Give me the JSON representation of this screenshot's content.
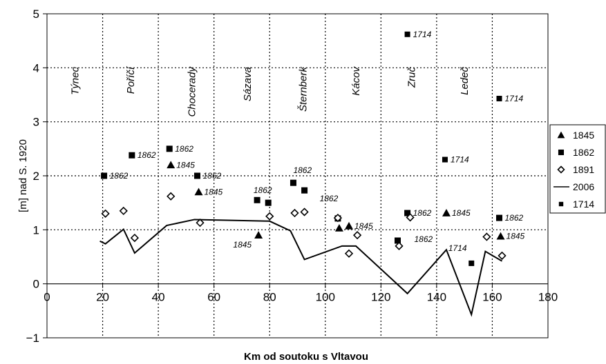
{
  "chart_data": {
    "type": "scatter",
    "xlabel": "Km od soutoku s Vltavou",
    "ylabel": "[m] nad S. 1920",
    "xlim": [
      0,
      180
    ],
    "ylim": [
      -1,
      5
    ],
    "x_ticks": [
      0,
      20,
      40,
      60,
      80,
      100,
      120,
      140,
      160,
      180
    ],
    "y_ticks": [
      -1,
      0,
      1,
      2,
      3,
      4,
      5
    ],
    "grid": "dotted",
    "legend_position": "right",
    "places": [
      {
        "name": "Týnec",
        "x": 10
      },
      {
        "name": "Poříčí",
        "x": 30
      },
      {
        "name": "Chocerady",
        "x": 52
      },
      {
        "name": "Sázava",
        "x": 72
      },
      {
        "name": "Šternberk",
        "x": 92
      },
      {
        "name": "Kácov",
        "x": 111
      },
      {
        "name": "Zruč",
        "x": 131
      },
      {
        "name": "Ledeč",
        "x": 150
      }
    ],
    "series": [
      {
        "name": "1845",
        "marker": "triangle",
        "points": [
          {
            "x": 44.5,
            "y": 2.2,
            "label": "1845"
          },
          {
            "x": 54.5,
            "y": 1.7,
            "label": "1845"
          },
          {
            "x": 76,
            "y": 0.9,
            "label": "1845"
          },
          {
            "x": 105,
            "y": 1.03,
            "label": ""
          },
          {
            "x": 108.5,
            "y": 1.07,
            "label": "1845"
          },
          {
            "x": 143.5,
            "y": 1.31,
            "label": "1845"
          },
          {
            "x": 163,
            "y": 0.88,
            "label": "1845"
          }
        ]
      },
      {
        "name": "1862",
        "marker": "square",
        "points": [
          {
            "x": 20.5,
            "y": 2.0,
            "label": "1862"
          },
          {
            "x": 30.5,
            "y": 2.38,
            "label": "1862"
          },
          {
            "x": 44,
            "y": 2.5,
            "label": "1862"
          },
          {
            "x": 54,
            "y": 2.0,
            "label": "1862"
          },
          {
            "x": 75.5,
            "y": 1.55,
            "label": ""
          },
          {
            "x": 79.5,
            "y": 1.5,
            "label": "1862"
          },
          {
            "x": 88.5,
            "y": 1.87,
            "label": "1862"
          },
          {
            "x": 92.5,
            "y": 1.73,
            "label": "1862"
          },
          {
            "x": 104.5,
            "y": 1.21,
            "label": ""
          },
          {
            "x": 126,
            "y": 0.8,
            "label": "1862"
          },
          {
            "x": 129.5,
            "y": 1.31,
            "label": "1862"
          },
          {
            "x": 162.5,
            "y": 1.22,
            "label": "1862"
          }
        ]
      },
      {
        "name": "1891",
        "marker": "diamond",
        "points": [
          {
            "x": 21,
            "y": 1.3
          },
          {
            "x": 27.5,
            "y": 1.35
          },
          {
            "x": 31.5,
            "y": 0.85
          },
          {
            "x": 44.5,
            "y": 1.62
          },
          {
            "x": 55,
            "y": 1.13
          },
          {
            "x": 80,
            "y": 1.25
          },
          {
            "x": 89,
            "y": 1.31
          },
          {
            "x": 92.5,
            "y": 1.33
          },
          {
            "x": 104.5,
            "y": 1.22
          },
          {
            "x": 108.5,
            "y": 0.56
          },
          {
            "x": 111.5,
            "y": 0.9
          },
          {
            "x": 126.5,
            "y": 0.7
          },
          {
            "x": 130.5,
            "y": 1.23
          },
          {
            "x": 158,
            "y": 0.87
          },
          {
            "x": 163.5,
            "y": 0.52
          }
        ]
      },
      {
        "name": "2006",
        "marker": "line",
        "points": [
          {
            "x": 19,
            "y": 0.79
          },
          {
            "x": 21,
            "y": 0.74
          },
          {
            "x": 27.5,
            "y": 1.01
          },
          {
            "x": 31.5,
            "y": 0.57
          },
          {
            "x": 43,
            "y": 1.08
          },
          {
            "x": 53,
            "y": 1.19
          },
          {
            "x": 80,
            "y": 1.16
          },
          {
            "x": 87.5,
            "y": 0.98
          },
          {
            "x": 92.5,
            "y": 0.45
          },
          {
            "x": 106,
            "y": 0.7
          },
          {
            "x": 111,
            "y": 0.7
          },
          {
            "x": 129.5,
            "y": -0.18
          },
          {
            "x": 143.5,
            "y": 0.63
          },
          {
            "x": 152.5,
            "y": -0.57
          },
          {
            "x": 157.5,
            "y": 0.6
          },
          {
            "x": 163.5,
            "y": 0.42
          }
        ]
      },
      {
        "name": "1714",
        "marker": "small-square",
        "points": [
          {
            "x": 129.5,
            "y": 4.62,
            "label": "1714"
          },
          {
            "x": 143,
            "y": 2.3,
            "label": "1714"
          },
          {
            "x": 152.5,
            "y": 0.38,
            "label": "1714"
          },
          {
            "x": 162.5,
            "y": 3.43,
            "label": "1714"
          }
        ]
      }
    ]
  }
}
